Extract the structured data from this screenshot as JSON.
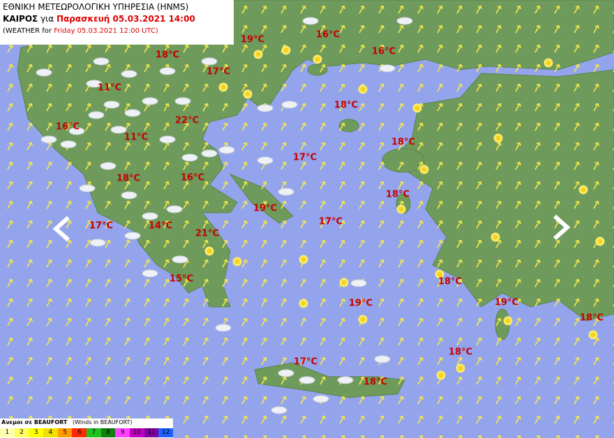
{
  "header": {
    "title": "ΕΘΝΙΚΗ ΜΕΤΕΩΡΟΛΟΓΙΚΗ ΥΠΗΡΕΣΙΑ (HNMS)",
    "subtitle": {
      "label": "ΚΑΙΡΟΣ",
      "for": "για",
      "date": "Παρασκευή 05.03.2021 14:00"
    },
    "english": {
      "prefix": "(WEATHER for",
      "date": "Friday 05.03.2021 12:00 UTC)"
    }
  },
  "temperatures": [
    "19°C",
    "16°C",
    "16°C",
    "18°C",
    "17°C",
    "11°C",
    "18°C",
    "16°C",
    "22°C",
    "11°C",
    "18°C",
    "17°C",
    "18°C",
    "16°C",
    "18°C",
    "19°C",
    "17°C",
    "17°C",
    "14°C",
    "21°C",
    "15°C",
    "18°C",
    "19°C",
    "19°C",
    "18°C",
    "18°C",
    "17°C",
    "18°C"
  ],
  "legend": {
    "title": "Ανεμοι σε BEAUFORT",
    "subtitle": "(Winds in BEAUFORT)",
    "levels": [
      1,
      2,
      3,
      4,
      5,
      6,
      7,
      8,
      9,
      10,
      11,
      12
    ]
  }
}
